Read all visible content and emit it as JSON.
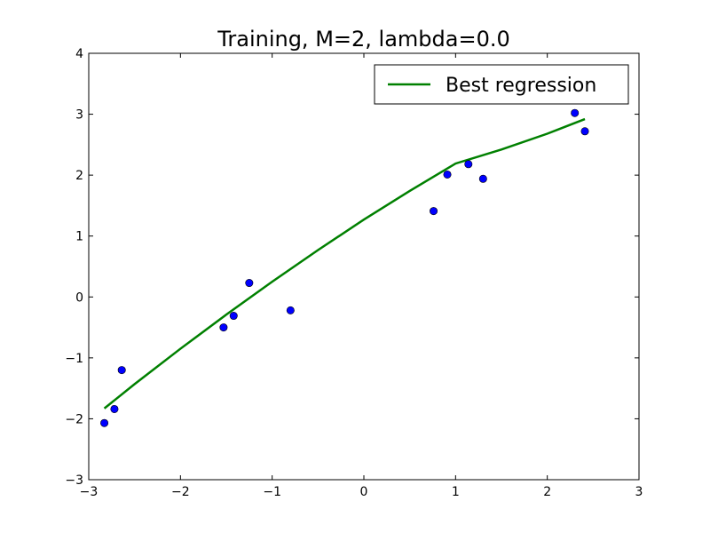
{
  "chart_data": {
    "type": "scatter",
    "title": "Training, M=2, lambda=0.0",
    "xlabel": "",
    "ylabel": "",
    "xlim": [
      -3,
      3
    ],
    "ylim": [
      -3,
      4
    ],
    "xticks": [
      -3,
      -2,
      -1,
      0,
      1,
      2,
      3
    ],
    "yticks": [
      -3,
      -2,
      -1,
      0,
      1,
      2,
      3,
      4
    ],
    "xtick_labels": [
      "−3",
      "−2",
      "−1",
      "0",
      "1",
      "2",
      "3"
    ],
    "ytick_labels": [
      "−3",
      "−2",
      "−1",
      "0",
      "1",
      "2",
      "3",
      "4"
    ],
    "grid": false,
    "legend": {
      "position": "top-right"
    },
    "series": [
      {
        "name": "",
        "kind": "scatter",
        "color": "#0000ff",
        "points": [
          {
            "x": -2.83,
            "y": -2.07
          },
          {
            "x": -2.72,
            "y": -1.84
          },
          {
            "x": -2.64,
            "y": -1.2
          },
          {
            "x": -1.53,
            "y": -0.5
          },
          {
            "x": -1.42,
            "y": -0.31
          },
          {
            "x": -1.25,
            "y": 0.23
          },
          {
            "x": -0.8,
            "y": -0.22
          },
          {
            "x": 0.76,
            "y": 1.41
          },
          {
            "x": 0.91,
            "y": 2.01
          },
          {
            "x": 1.14,
            "y": 2.18
          },
          {
            "x": 1.3,
            "y": 1.94
          },
          {
            "x": 2.3,
            "y": 3.02
          },
          {
            "x": 2.41,
            "y": 2.72
          }
        ]
      },
      {
        "name": "Best regression",
        "kind": "line",
        "color": "#008000",
        "points": [
          {
            "x": -2.83,
            "y": -1.83
          },
          {
            "x": -2.5,
            "y": -1.43
          },
          {
            "x": -2.0,
            "y": -0.85
          },
          {
            "x": -1.5,
            "y": -0.29
          },
          {
            "x": -1.0,
            "y": 0.25
          },
          {
            "x": -0.5,
            "y": 0.77
          },
          {
            "x": 0.0,
            "y": 1.27
          },
          {
            "x": 0.5,
            "y": 1.74
          },
          {
            "x": 1.0,
            "y": 2.19
          },
          {
            "x": 1.5,
            "y": 2.42
          },
          {
            "x": 2.0,
            "y": 2.68
          },
          {
            "x": 2.41,
            "y": 2.92
          }
        ]
      }
    ]
  }
}
